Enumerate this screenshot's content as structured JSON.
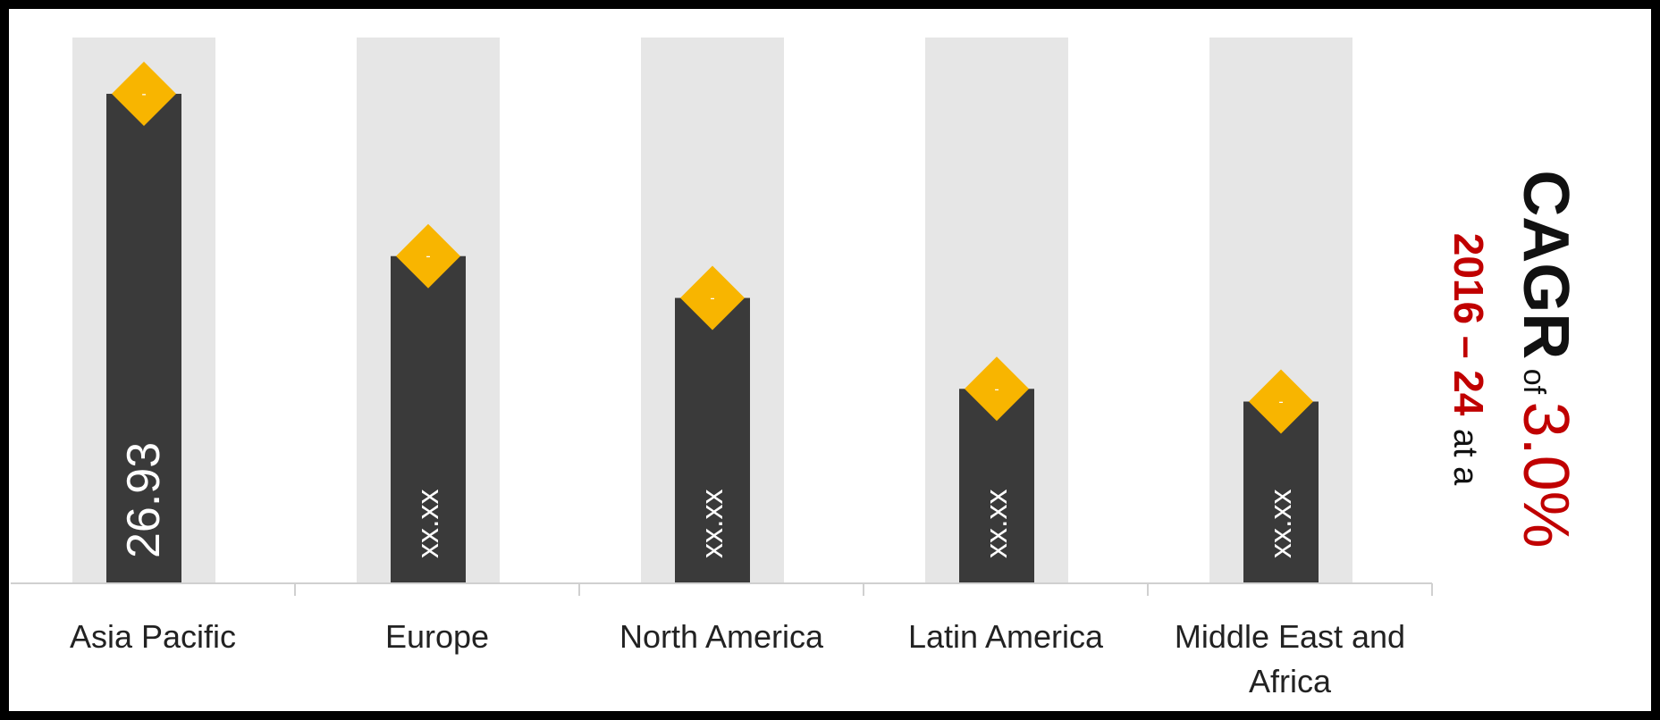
{
  "chart_data": {
    "type": "bar",
    "categories": [
      "Asia Pacific",
      "Europe",
      "North America",
      "Latin America",
      "Middle East and Africa"
    ],
    "values": [
      26.93,
      18.0,
      15.7,
      10.7,
      10.0
    ],
    "value_labels": [
      "26.93",
      "xx.xx",
      "xx.xx",
      "xx.xx",
      "xx.xx"
    ],
    "marker_label": "-",
    "ylim": [
      0,
      30
    ],
    "grid": false,
    "legend": "none"
  },
  "colors": {
    "bar": "#3a3a3a",
    "track": "#e6e6e6",
    "marker": "#f8b500",
    "axis": "#d0d0d0",
    "cagr_red": "#c00000",
    "cagr_black": "#111111"
  },
  "side_text": {
    "cagr": "CAGR",
    "of": "of",
    "rate": "3.0%",
    "period": "2016 – 24",
    "at_a": "at a"
  }
}
